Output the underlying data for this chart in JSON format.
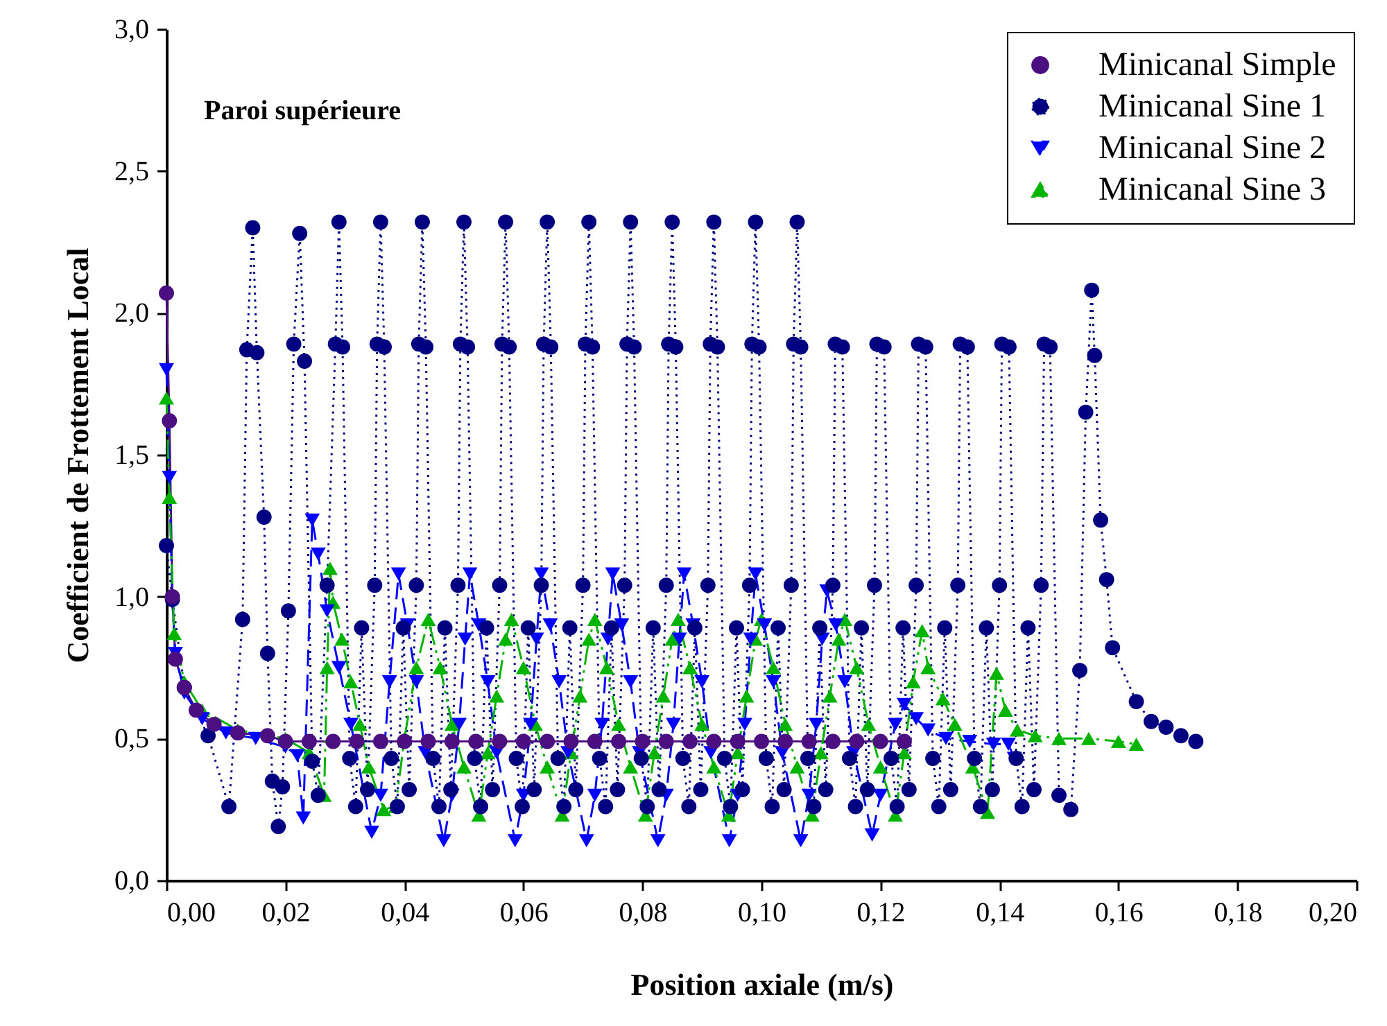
{
  "chart_data": {
    "type": "line",
    "xlabel": "Position axiale (m/s)",
    "ylabel": "Coefficient de Frottement Local",
    "annotations": [
      "Paroi supérieure"
    ],
    "xlim": [
      0,
      0.2
    ],
    "ylim": [
      0,
      3
    ],
    "xticks": [
      {
        "value": 0,
        "label": "0,00"
      },
      {
        "value": 0.02,
        "label": "0,02"
      },
      {
        "value": 0.04,
        "label": "0,04"
      },
      {
        "value": 0.06,
        "label": "0,06"
      },
      {
        "value": 0.08,
        "label": "0,08"
      },
      {
        "value": 0.1,
        "label": "0,10"
      },
      {
        "value": 0.12,
        "label": "0,12"
      },
      {
        "value": 0.14,
        "label": "0,14"
      },
      {
        "value": 0.16,
        "label": "0,16"
      },
      {
        "value": 0.18,
        "label": "0,18"
      },
      {
        "value": 0.2,
        "label": "0,20"
      }
    ],
    "yticks": [
      {
        "value": 0,
        "label": "0,0"
      },
      {
        "value": 0.5,
        "label": "0,5"
      },
      {
        "value": 1,
        "label": "1,0"
      },
      {
        "value": 1.5,
        "label": "1,5"
      },
      {
        "value": 2,
        "label": "2,0"
      },
      {
        "value": 2.5,
        "label": "2,5"
      },
      {
        "value": 3,
        "label": "3,0"
      }
    ],
    "grid": false,
    "legend": "top right",
    "series": [
      {
        "name": "Minicanal Simple",
        "color": "#4b0f82",
        "marker": "circle",
        "line_style": "solid",
        "x": [
          0,
          0.0005,
          0.001,
          0.0015,
          0.003,
          0.005,
          0.008,
          0.012,
          0.017,
          0.02,
          0.024,
          0.028,
          0.032,
          0.036,
          0.04,
          0.044,
          0.048,
          0.052,
          0.056,
          0.06,
          0.064,
          0.068,
          0.072,
          0.076,
          0.08,
          0.084,
          0.088,
          0.092,
          0.096,
          0.1,
          0.104,
          0.108,
          0.112,
          0.116,
          0.12,
          0.124
        ],
        "values": [
          2.07,
          1.62,
          1.0,
          0.78,
          0.68,
          0.6,
          0.55,
          0.52,
          0.51,
          0.49,
          0.49,
          0.49,
          0.49,
          0.49,
          0.49,
          0.49,
          0.49,
          0.49,
          0.49,
          0.49,
          0.49,
          0.49,
          0.49,
          0.49,
          0.49,
          0.49,
          0.49,
          0.49,
          0.49,
          0.49,
          0.49,
          0.49,
          0.49,
          0.49,
          0.49,
          0.49
        ]
      },
      {
        "name": "Minicanal Sine 1",
        "color": "#000080",
        "marker": "circle",
        "line_style": "dotted",
        "x": [
          0,
          0.001,
          0.003,
          0.007,
          0.0105,
          0.0128,
          0.0135,
          0.0145,
          0.0152,
          0.0164,
          0.017,
          0.0178,
          0.0188,
          0.0195,
          0.0205,
          0.0214,
          0.0224,
          0.0232,
          0.0245,
          0.0255,
          0.027,
          0.0284,
          0.029,
          0.0296,
          0.0308,
          0.0318,
          0.0328,
          0.0338,
          0.035,
          0.0354,
          0.036,
          0.0366,
          0.0378,
          0.0388,
          0.0398,
          0.0408,
          0.042,
          0.0424,
          0.043,
          0.0436,
          0.0448,
          0.0458,
          0.0468,
          0.0478,
          0.049,
          0.0494,
          0.05,
          0.0506,
          0.0518,
          0.0528,
          0.0538,
          0.0548,
          0.056,
          0.0564,
          0.057,
          0.0576,
          0.0588,
          0.0598,
          0.0608,
          0.0618,
          0.063,
          0.0634,
          0.064,
          0.0646,
          0.0658,
          0.0668,
          0.0678,
          0.0688,
          0.07,
          0.0704,
          0.071,
          0.0716,
          0.0728,
          0.0738,
          0.0748,
          0.0758,
          0.077,
          0.0774,
          0.078,
          0.0786,
          0.0798,
          0.0808,
          0.0818,
          0.0828,
          0.084,
          0.0844,
          0.085,
          0.0856,
          0.0868,
          0.0878,
          0.0888,
          0.0898,
          0.091,
          0.0914,
          0.092,
          0.0926,
          0.0938,
          0.0948,
          0.0958,
          0.0968,
          0.098,
          0.0984,
          0.099,
          0.0996,
          0.1008,
          0.1018,
          0.1028,
          0.1038,
          0.105,
          0.1054,
          0.106,
          0.1066,
          0.1078,
          0.1088,
          0.1098,
          0.1108,
          0.112,
          0.1124,
          0.1136,
          0.1148,
          0.1158,
          0.1168,
          0.1178,
          0.119,
          0.1194,
          0.1206,
          0.1218,
          0.1228,
          0.1238,
          0.1248,
          0.126,
          0.1264,
          0.1276,
          0.1288,
          0.1298,
          0.1308,
          0.1318,
          0.133,
          0.1334,
          0.1346,
          0.1358,
          0.1368,
          0.1378,
          0.1388,
          0.14,
          0.1404,
          0.1416,
          0.1428,
          0.1438,
          0.1448,
          0.1458,
          0.147,
          0.1475,
          0.1485,
          0.15,
          0.152,
          0.1535,
          0.1545,
          0.1555,
          0.156,
          0.157,
          0.158,
          0.159,
          0.163,
          0.1655,
          0.168,
          0.1705,
          0.173
        ],
        "values": [
          1.18,
          0.99,
          0.68,
          0.51,
          0.26,
          0.92,
          1.87,
          2.3,
          1.86,
          1.28,
          0.8,
          0.35,
          0.19,
          0.33,
          0.95,
          1.89,
          2.28,
          1.83,
          0.42,
          0.3,
          1.04,
          1.89,
          2.32,
          1.88,
          0.43,
          0.26,
          0.89,
          0.32,
          1.04,
          1.89,
          2.32,
          1.88,
          0.43,
          0.26,
          0.89,
          0.32,
          1.04,
          1.89,
          2.32,
          1.88,
          0.43,
          0.26,
          0.89,
          0.32,
          1.04,
          1.89,
          2.32,
          1.88,
          0.43,
          0.26,
          0.89,
          0.32,
          1.04,
          1.89,
          2.32,
          1.88,
          0.43,
          0.26,
          0.89,
          0.32,
          1.04,
          1.89,
          2.32,
          1.88,
          0.43,
          0.26,
          0.89,
          0.32,
          1.04,
          1.89,
          2.32,
          1.88,
          0.43,
          0.26,
          0.89,
          0.32,
          1.04,
          1.89,
          2.32,
          1.88,
          0.43,
          0.26,
          0.89,
          0.32,
          1.04,
          1.89,
          2.32,
          1.88,
          0.43,
          0.26,
          0.89,
          0.32,
          1.04,
          1.89,
          2.32,
          1.88,
          0.43,
          0.26,
          0.89,
          0.32,
          1.04,
          1.89,
          2.32,
          1.88,
          0.43,
          0.26,
          0.89,
          0.32,
          1.04,
          1.89,
          2.32,
          1.88,
          0.43,
          0.26,
          0.89,
          0.32,
          1.04,
          1.89,
          1.88,
          0.43,
          0.26,
          0.89,
          0.32,
          1.04,
          1.89,
          1.88,
          0.43,
          0.26,
          0.89,
          0.32,
          1.04,
          1.89,
          1.88,
          0.43,
          0.26,
          0.89,
          0.32,
          1.04,
          1.89,
          1.88,
          0.43,
          0.26,
          0.89,
          0.32,
          1.04,
          1.89,
          1.88,
          0.43,
          0.26,
          0.89,
          0.32,
          1.04,
          1.89,
          1.88,
          0.3,
          0.25,
          0.74,
          1.65,
          2.08,
          1.85,
          1.27,
          1.06,
          0.82,
          0.63,
          0.56,
          0.54,
          0.51,
          0.49
        ]
      },
      {
        "name": "Minicanal Sine 2",
        "color": "#0000ff",
        "marker": "triangle-down",
        "line_style": "dashed",
        "x": [
          0,
          0.0005,
          0.001,
          0.0015,
          0.003,
          0.006,
          0.01,
          0.015,
          0.02,
          0.022,
          0.023,
          0.0245,
          0.0255,
          0.027,
          0.029,
          0.031,
          0.0345,
          0.036,
          0.0375,
          0.039,
          0.0405,
          0.042,
          0.0435,
          0.0466,
          0.048,
          0.0492,
          0.0502,
          0.051,
          0.0525,
          0.054,
          0.0555,
          0.0586,
          0.06,
          0.0612,
          0.0622,
          0.063,
          0.0645,
          0.066,
          0.0675,
          0.0706,
          0.072,
          0.0732,
          0.0742,
          0.075,
          0.0765,
          0.078,
          0.0795,
          0.0826,
          0.084,
          0.0852,
          0.0862,
          0.087,
          0.0885,
          0.09,
          0.0915,
          0.0946,
          0.096,
          0.0972,
          0.0982,
          0.099,
          0.1005,
          0.102,
          0.1035,
          0.1066,
          0.108,
          0.1092,
          0.1102,
          0.111,
          0.1125,
          0.114,
          0.1155,
          0.1186,
          0.12,
          0.1225,
          0.124,
          0.126,
          0.128,
          0.131,
          0.135,
          0.139,
          0.1415,
          0.1425
        ],
        "values": [
          1.8,
          1.42,
          0.98,
          0.8,
          0.66,
          0.57,
          0.52,
          0.5,
          0.47,
          0.44,
          0.22,
          1.27,
          1.15,
          0.95,
          0.75,
          0.55,
          0.17,
          0.3,
          0.7,
          1.08,
          0.9,
          0.7,
          0.45,
          0.14,
          0.3,
          0.55,
          0.85,
          1.08,
          0.9,
          0.7,
          0.45,
          0.14,
          0.3,
          0.55,
          0.85,
          1.08,
          0.9,
          0.7,
          0.45,
          0.14,
          0.3,
          0.55,
          0.85,
          1.08,
          0.9,
          0.7,
          0.45,
          0.14,
          0.3,
          0.55,
          0.85,
          1.08,
          0.9,
          0.7,
          0.45,
          0.14,
          0.3,
          0.55,
          0.85,
          1.08,
          0.9,
          0.7,
          0.45,
          0.14,
          0.3,
          0.55,
          0.85,
          1.02,
          0.9,
          0.7,
          0.45,
          0.16,
          0.3,
          0.55,
          0.62,
          0.57,
          0.53,
          0.5,
          0.49,
          0.48,
          0.48,
          0.43
        ]
      },
      {
        "name": "Minicanal Sine 3",
        "color": "#00b400",
        "marker": "triangle",
        "line_style": "dashdot",
        "x": [
          0,
          0.0005,
          0.0013,
          0.003,
          0.006,
          0.012,
          0.02,
          0.024,
          0.0265,
          0.027,
          0.0275,
          0.028,
          0.0295,
          0.031,
          0.0325,
          0.034,
          0.0365,
          0.0385,
          0.04,
          0.042,
          0.044,
          0.046,
          0.048,
          0.05,
          0.0525,
          0.054,
          0.0555,
          0.057,
          0.058,
          0.06,
          0.062,
          0.064,
          0.0665,
          0.068,
          0.0695,
          0.071,
          0.072,
          0.074,
          0.076,
          0.078,
          0.0805,
          0.082,
          0.0835,
          0.085,
          0.086,
          0.088,
          0.09,
          0.092,
          0.0945,
          0.096,
          0.0975,
          0.099,
          0.1,
          0.102,
          0.104,
          0.106,
          0.1085,
          0.11,
          0.1115,
          0.113,
          0.114,
          0.116,
          0.118,
          0.12,
          0.1225,
          0.124,
          0.1255,
          0.127,
          0.128,
          0.1305,
          0.1325,
          0.1355,
          0.138,
          0.1395,
          0.141,
          0.143,
          0.146,
          0.15,
          0.155,
          0.16,
          0.163
        ],
        "values": [
          1.7,
          1.35,
          0.87,
          0.7,
          0.6,
          0.53,
          0.5,
          0.45,
          0.3,
          0.75,
          1.1,
          0.98,
          0.85,
          0.7,
          0.55,
          0.4,
          0.25,
          0.26,
          0.5,
          0.75,
          0.92,
          0.75,
          0.55,
          0.4,
          0.23,
          0.45,
          0.65,
          0.85,
          0.92,
          0.75,
          0.55,
          0.4,
          0.23,
          0.45,
          0.65,
          0.85,
          0.92,
          0.75,
          0.55,
          0.4,
          0.23,
          0.45,
          0.65,
          0.85,
          0.92,
          0.75,
          0.55,
          0.4,
          0.23,
          0.45,
          0.65,
          0.85,
          0.92,
          0.75,
          0.55,
          0.4,
          0.23,
          0.45,
          0.65,
          0.85,
          0.92,
          0.75,
          0.55,
          0.4,
          0.23,
          0.45,
          0.7,
          0.88,
          0.75,
          0.64,
          0.55,
          0.4,
          0.24,
          0.73,
          0.6,
          0.53,
          0.51,
          0.5,
          0.5,
          0.49,
          0.48
        ]
      }
    ]
  }
}
